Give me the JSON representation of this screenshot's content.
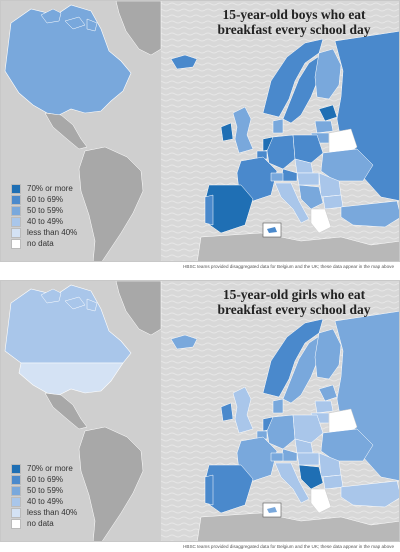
{
  "maps": [
    {
      "title_line1": "15-year-old boys who eat",
      "title_line2": "breakfast every school day",
      "footnote": "HBSC teams provided disaggregated data for Belgium and the UK; these data appear in the map above"
    },
    {
      "title_line1": "15-year-old girls who eat",
      "title_line2": "breakfast every school day",
      "footnote": "HBSC teams provided disaggregated data for Belgium and the UK; these data appear in the map above"
    }
  ],
  "legend": [
    {
      "label": "70% or more",
      "color": "#1f6fb4"
    },
    {
      "label": "60 to 69%",
      "color": "#4a89cc"
    },
    {
      "label": "50 to 59%",
      "color": "#79a8dc"
    },
    {
      "label": "40 to 49%",
      "color": "#a9c6ea"
    },
    {
      "label": "less than 40%",
      "color": "#d4e2f4"
    },
    {
      "label": "no data",
      "color": "#ffffff"
    }
  ]
}
